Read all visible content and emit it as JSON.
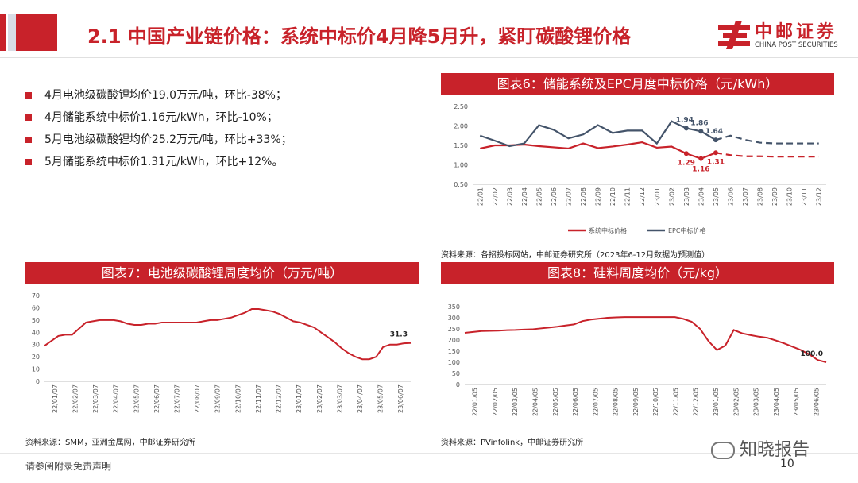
{
  "header": {
    "title": "2.1 中国产业链价格：系统中标价4月降5月升，紧盯碳酸锂价格",
    "logo_cn": "中邮证券",
    "logo_en": "CHINA POST SECURITIES"
  },
  "colors": {
    "brand_red": "#c8222a",
    "series_blue": "#44546a"
  },
  "bullets": [
    "4月电池级碳酸锂均价19.0万元/吨，环比-38%；",
    "4月储能系统中标价1.16元/kWh，环比-10%；",
    "5月电池级碳酸锂均价25.2万元/吨，环比+33%；",
    "5月储能系统中标价1.31元/kWh，环比+12%。"
  ],
  "charts": {
    "fig6": {
      "source": "资料来源：各招投标网站，中邮证券研究所（2023年6-12月数据为预测值）"
    },
    "fig7": {
      "source": "资料来源：SMM，亚洲金属网，中邮证券研究所"
    },
    "fig8": {
      "source": "资料来源：PVinfolink，中邮证券研究所"
    }
  },
  "chart_data": [
    {
      "id": "fig6",
      "type": "line",
      "title": "图表6：储能系统及EPC月度中标价格（元/kWh）",
      "categories": [
        "22/01",
        "22/02",
        "22/03",
        "22/04",
        "22/05",
        "22/06",
        "22/07",
        "22/08",
        "22/09",
        "22/10",
        "22/11",
        "22/12",
        "23/01",
        "23/02",
        "23/03",
        "23/04",
        "23/05",
        "23/06",
        "23/07",
        "23/08",
        "23/09",
        "23/10",
        "23/11",
        "23/12"
      ],
      "ylim": [
        0.5,
        2.5
      ],
      "yticks": [
        "0.50",
        "1.00",
        "1.50",
        "2.00",
        "2.50"
      ],
      "forecast_from_index": 16,
      "series": [
        {
          "name": "系统中标价格",
          "color": "#c8222a",
          "values": [
            1.42,
            1.5,
            1.5,
            1.52,
            1.48,
            1.45,
            1.42,
            1.55,
            1.43,
            1.47,
            1.52,
            1.58,
            1.44,
            1.47,
            1.29,
            1.16,
            1.31,
            1.25,
            1.22,
            1.22,
            1.21,
            1.21,
            1.21,
            1.21
          ],
          "labels": [
            {
              "index": 14,
              "text": "1.29"
            },
            {
              "index": 15,
              "text": "1.16"
            },
            {
              "index": 16,
              "text": "1.31"
            }
          ]
        },
        {
          "name": "EPC中标价格",
          "color": "#44546a",
          "values": [
            1.75,
            1.62,
            1.48,
            1.55,
            2.02,
            1.9,
            1.68,
            1.78,
            2.02,
            1.82,
            1.88,
            1.88,
            1.55,
            2.12,
            1.94,
            1.86,
            1.64,
            1.75,
            1.64,
            1.57,
            1.55,
            1.55,
            1.55,
            1.55
          ],
          "labels": [
            {
              "index": 14,
              "text": "1.94"
            },
            {
              "index": 15,
              "text": "1.86"
            },
            {
              "index": 16,
              "text": "1.64"
            }
          ]
        }
      ]
    },
    {
      "id": "fig7",
      "type": "line",
      "title": "图表7：电池级碳酸锂周度均价（万元/吨）",
      "x_ticks": [
        "22/01/07",
        "22/02/07",
        "22/03/07",
        "22/04/07",
        "22/05/07",
        "22/06/07",
        "22/07/07",
        "22/08/07",
        "22/09/07",
        "22/10/07",
        "22/11/07",
        "22/12/07",
        "23/01/07",
        "23/02/07",
        "23/03/07",
        "23/04/07",
        "23/05/07",
        "23/06/07"
      ],
      "ylim": [
        0,
        70
      ],
      "yticks": [
        "0",
        "10",
        "20",
        "30",
        "40",
        "50",
        "60",
        "70"
      ],
      "series": [
        {
          "name": "电池级碳酸锂周度均价",
          "color": "#c8222a",
          "values": [
            29,
            33,
            37,
            38,
            38,
            43,
            48,
            49,
            50,
            50,
            50,
            49,
            47,
            46,
            46,
            47,
            47,
            48,
            48,
            48,
            48,
            48,
            48,
            49,
            50,
            50,
            51,
            52,
            54,
            56,
            59,
            59,
            58,
            57,
            55,
            52,
            49,
            48,
            46,
            44,
            40,
            36,
            32,
            27,
            23,
            20,
            18,
            18,
            20,
            28,
            30,
            30,
            31,
            31.3
          ],
          "end_label": "31.3"
        }
      ]
    },
    {
      "id": "fig8",
      "type": "line",
      "title": "图表8：硅料周度均价（元/kg）",
      "x_ticks": [
        "22/01/05",
        "22/02/05",
        "22/03/05",
        "22/04/05",
        "22/05/05",
        "22/06/05",
        "22/07/05",
        "22/08/05",
        "22/09/05",
        "22/10/05",
        "22/11/05",
        "22/12/05",
        "23/01/05",
        "23/02/05",
        "23/03/05",
        "23/04/05",
        "23/05/05",
        "23/06/05"
      ],
      "ylim": [
        0,
        350
      ],
      "yticks": [
        "0",
        "50",
        "100",
        "150",
        "200",
        "250",
        "300",
        "350"
      ],
      "series": [
        {
          "name": "硅料周度均价",
          "color": "#c8222a",
          "values": [
            232,
            236,
            240,
            241,
            242,
            244,
            245,
            247,
            248,
            252,
            256,
            260,
            265,
            270,
            285,
            292,
            296,
            300,
            302,
            303,
            303,
            303,
            303,
            303,
            303,
            303,
            295,
            282,
            250,
            195,
            155,
            175,
            245,
            230,
            222,
            215,
            210,
            198,
            185,
            170,
            155,
            135,
            110,
            100
          ],
          "end_label": "100.0"
        }
      ]
    }
  ],
  "footer": {
    "note": "请参阅附录免责声明",
    "watermark": "知晓报告",
    "page_number": "10"
  }
}
